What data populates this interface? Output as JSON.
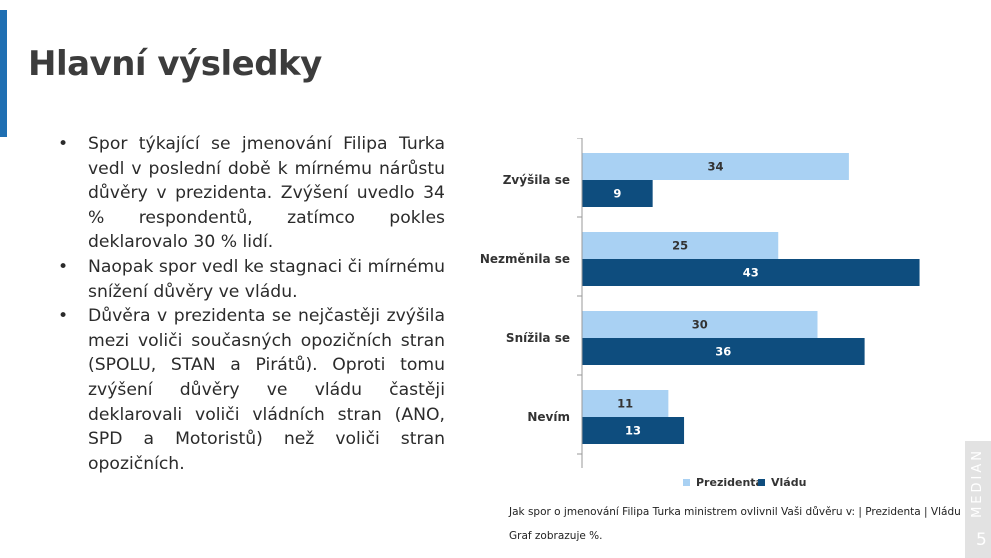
{
  "slide": {
    "title": "Hlavní výsledky",
    "bullets": [
      "Spor týkající se jmenování Filipa Turka vedl v poslední době k mírnému nárůstu důvěry v prezidenta. Zvýšení uvedlo 34 % respondentů, zatímco pokles deklarovalo 30 % lidí.",
      "Naopak spor vedl ke stagnaci či mírnému snížení důvěry ve vládu.",
      "Důvěra v prezidenta se nejčastěji zvýšila mezi voliči současných opozičních stran (SPOLU, STAN a Pirátů). Oproti tomu zvýšení důvěry ve vládu častěji deklarovali voliči vládních stran (ANO, SPD a Motoristů) než voliči stran opozičních."
    ],
    "note_question": "Jak spor o jmenování Filipa Turka ministrem ovlivnil Vaši důvěru v: | Prezidenta | Vládu",
    "note_caption": "Graf zobrazuje %.",
    "brand": "MEDIAN",
    "page_number": "5"
  },
  "colors": {
    "accent": "#1f6fb2",
    "series_prezidenta": "#a9d1f3",
    "series_vladu": "#0e4d7e"
  },
  "chart_data": {
    "type": "bar",
    "orientation": "horizontal",
    "categories": [
      "Zvýšila se",
      "Nezměnila se",
      "Snížila se",
      "Nevím"
    ],
    "series": [
      {
        "name": "Prezidenta",
        "values": [
          34,
          25,
          30,
          11
        ]
      },
      {
        "name": "Vládu",
        "values": [
          9,
          43,
          36,
          13
        ]
      }
    ],
    "xlim": [
      0,
      45
    ],
    "grid": false,
    "legend": "bottom",
    "data_labels": true
  }
}
